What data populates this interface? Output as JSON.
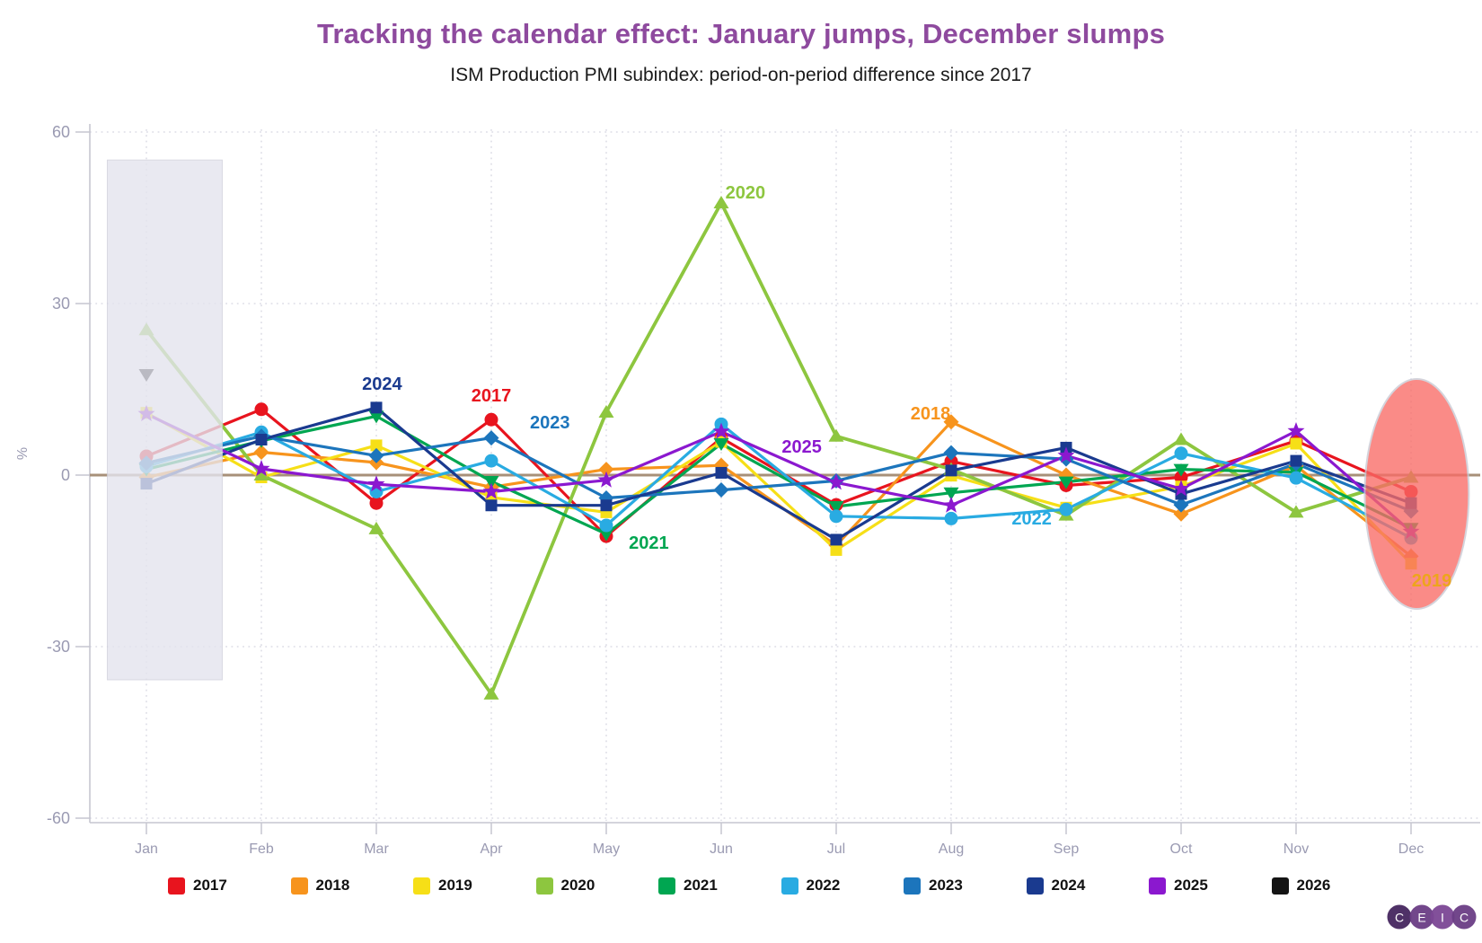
{
  "title": {
    "text": "Tracking the calendar effect: January jumps, December slumps",
    "color": "#8e4a9e"
  },
  "subtitle": {
    "text": "ISM Production PMI subindex: period-on-period difference since 2017"
  },
  "chart_data": {
    "type": "line",
    "x": [
      "Jan",
      "Feb",
      "Mar",
      "Apr",
      "May",
      "Jun",
      "Jul",
      "Aug",
      "Sep",
      "Oct",
      "Nov",
      "Dec"
    ],
    "ylabel": "%",
    "ylim": [
      -60,
      60
    ],
    "yticks": [
      60,
      30,
      0,
      -30,
      -60
    ],
    "grid": "dotted",
    "zero_line_color": "#a79079",
    "axis_color": "#c6c6d0",
    "grid_color": "#d5d5e0",
    "tick_label_color": "#9a9ab2",
    "series": [
      {
        "name": "2017",
        "color": "#e8141e",
        "marker": "circle",
        "values": [
          3.3,
          11.5,
          -4.9,
          9.7,
          -10.7,
          6.5,
          -5.2,
          2.4,
          -1.8,
          -0.4,
          6.0,
          -2.9
        ]
      },
      {
        "name": "2018",
        "color": "#f7941d",
        "marker": "diamond",
        "values": [
          -0.4,
          4.0,
          2.2,
          -2.1,
          1.0,
          1.7,
          -12.3,
          9.3,
          0.0,
          -6.8,
          1.6,
          -14.2
        ]
      },
      {
        "name": "2019",
        "color": "#f6df17",
        "marker": "square",
        "values": [
          10.9,
          -0.4,
          5.2,
          -3.9,
          -6.5,
          5.8,
          -13.1,
          -0.1,
          -5.7,
          -2.0,
          5.5,
          -15.5
        ]
      },
      {
        "name": "2020",
        "color": "#8dc63f",
        "marker": "triangle-up",
        "values": [
          25.4,
          0.0,
          -9.4,
          -38.3,
          11.0,
          47.6,
          6.8,
          1.0,
          -7.0,
          6.2,
          -6.5,
          -0.4
        ]
      },
      {
        "name": "2021",
        "color": "#00a651",
        "marker": "triangle-down",
        "values": [
          1.0,
          6.0,
          10.3,
          -1.1,
          -10.3,
          5.5,
          -5.5,
          -3.1,
          -1.2,
          1.0,
          0.5,
          -9.3
        ]
      },
      {
        "name": "2022",
        "color": "#29abe2",
        "marker": "circle",
        "values": [
          1.5,
          7.5,
          -2.9,
          2.5,
          -8.8,
          8.9,
          -7.2,
          -7.6,
          -6.0,
          3.8,
          -0.5,
          -11.0
        ]
      },
      {
        "name": "2023",
        "color": "#1c75bc",
        "marker": "diamond",
        "values": [
          2.1,
          6.8,
          3.4,
          6.5,
          -4.0,
          -2.6,
          -1.0,
          3.9,
          2.8,
          -5.2,
          2.0,
          -6.3
        ]
      },
      {
        "name": "2024",
        "color": "#1a3a8f",
        "marker": "square",
        "values": [
          -1.5,
          6.2,
          11.8,
          -5.3,
          -5.3,
          0.4,
          -11.3,
          0.8,
          4.8,
          -3.3,
          2.5,
          -4.9
        ]
      },
      {
        "name": "2025",
        "color": "#8b18cf",
        "marker": "star",
        "values": [
          10.7,
          1.1,
          -1.6,
          -2.9,
          -0.9,
          7.6,
          -1.3,
          -5.3,
          3.4,
          -2.4,
          7.7,
          -9.9
        ]
      },
      {
        "name": "2026",
        "color": "#141414",
        "marker": "triangle-down",
        "values": [
          17.6,
          null,
          null,
          null,
          null,
          null,
          null,
          null,
          null,
          null,
          null,
          null
        ]
      }
    ],
    "annotations": [
      {
        "text": "2024",
        "color": "#1a3a8f",
        "month_pos": 2.05,
        "value": 16.0
      },
      {
        "text": "2017",
        "color": "#e8141e",
        "month_pos": 3.0,
        "value": 14.0
      },
      {
        "text": "2023",
        "color": "#1c75bc",
        "month_pos": 3.51,
        "value": 9.3
      },
      {
        "text": "2021",
        "color": "#00a651",
        "month_pos": 4.37,
        "value": -11.8
      },
      {
        "text": "2020",
        "color": "#8dc63f",
        "month_pos": 5.21,
        "value": 49.5
      },
      {
        "text": "2025",
        "color": "#8b18cf",
        "month_pos": 5.7,
        "value": 5.0
      },
      {
        "text": "2018",
        "color": "#f7941d",
        "month_pos": 6.82,
        "value": 10.8
      },
      {
        "text": "2022",
        "color": "#29abe2",
        "month_pos": 7.7,
        "value": -7.5
      },
      {
        "text": "2019",
        "color": "#eda51c",
        "month_pos": 11.18,
        "value": -18.4
      }
    ],
    "highlights": [
      {
        "shape": "rect",
        "name": "january-highlight",
        "fill": "#e4e4ee",
        "opacity": 0.8,
        "stroke": "#d0d0dc",
        "x_from": -0.34,
        "x_to": 0.66,
        "value_top": 55.1,
        "value_bottom": -35.8
      },
      {
        "shape": "ellipse",
        "name": "december-highlight",
        "fill": "#f96b66",
        "opacity": 0.78,
        "stroke": "#c9c9d3",
        "cx_month": 11.05,
        "cy_value": -3.3,
        "rx_months": 0.453,
        "ry_values": 20.1
      }
    ],
    "legend_position": "bottom"
  },
  "legend": {
    "items": [
      {
        "label": "2017",
        "color": "#e8141e"
      },
      {
        "label": "2018",
        "color": "#f7941d"
      },
      {
        "label": "2019",
        "color": "#f6df17"
      },
      {
        "label": "2020",
        "color": "#8dc63f"
      },
      {
        "label": "2021",
        "color": "#00a651"
      },
      {
        "label": "2022",
        "color": "#29abe2"
      },
      {
        "label": "2023",
        "color": "#1c75bc"
      },
      {
        "label": "2024",
        "color": "#1a3a8f"
      },
      {
        "label": "2025",
        "color": "#8b18cf"
      },
      {
        "label": "2026",
        "color": "#141414"
      }
    ]
  },
  "logo": {
    "letters": [
      "C",
      "E",
      "I",
      "C"
    ],
    "colors": [
      "#46265f",
      "#6a3d85",
      "#7b4795",
      "#6a3d85"
    ]
  }
}
